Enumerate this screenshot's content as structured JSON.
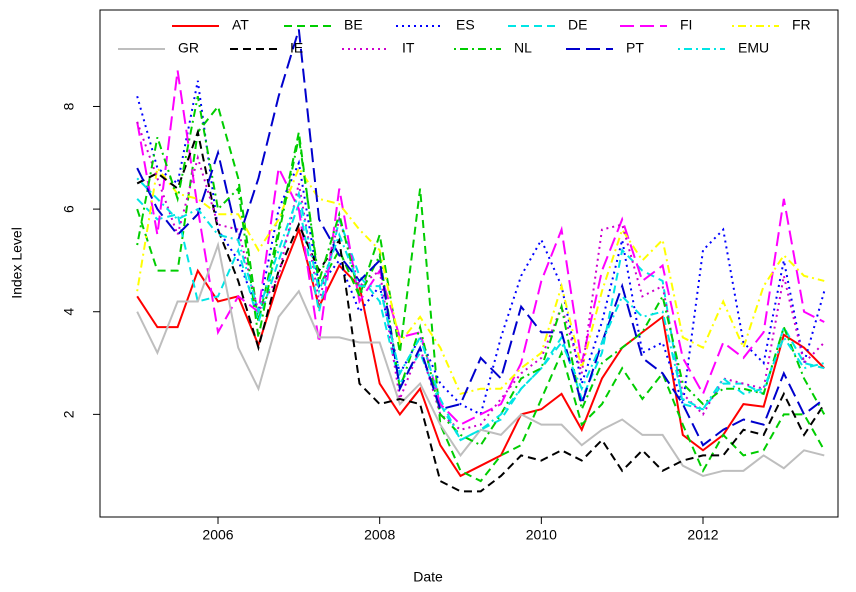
{
  "chart_data": {
    "type": "line",
    "x_label": "Date",
    "y_label": "Index Level",
    "xlim": [
      2004.54,
      2013.67
    ],
    "ylim": [
      0,
      9.88
    ],
    "xticks": [
      2006,
      2008,
      2010,
      2012
    ],
    "yticks": [
      2,
      4,
      6,
      8
    ],
    "legend": "top",
    "x": [
      2005,
      2005.25,
      2005.5,
      2005.75,
      2006,
      2006.25,
      2006.5,
      2006.75,
      2007,
      2007.25,
      2007.5,
      2007.75,
      2008,
      2008.25,
      2008.5,
      2008.75,
      2009,
      2009.25,
      2009.5,
      2009.75,
      2010,
      2010.25,
      2010.5,
      2010.75,
      2011,
      2011.25,
      2011.5,
      2011.75,
      2012,
      2012.25,
      2012.5,
      2012.75,
      2013,
      2013.25,
      2013.5
    ],
    "series": [
      {
        "name": "AT",
        "color": "#ff0000",
        "linetype": "solid",
        "values": [
          4.3,
          3.7,
          3.7,
          4.8,
          4.2,
          4.3,
          3.35,
          4.6,
          5.6,
          4.1,
          4.9,
          4.5,
          2.6,
          2.0,
          2.5,
          1.4,
          0.8,
          1.0,
          1.2,
          2.0,
          2.1,
          2.4,
          1.7,
          2.7,
          3.3,
          3.6,
          3.9,
          1.6,
          1.3,
          1.6,
          2.2,
          2.15,
          3.55,
          3.3,
          2.9
        ]
      },
      {
        "name": "BE",
        "color": "#00cd00",
        "linetype": "dashed",
        "values": [
          6.0,
          4.8,
          4.8,
          7.5,
          8.0,
          6.6,
          3.8,
          5.6,
          7.5,
          4.5,
          5.2,
          4.3,
          5.5,
          3.2,
          6.4,
          1.8,
          0.9,
          0.7,
          1.2,
          1.4,
          2.3,
          3.2,
          1.8,
          2.2,
          2.9,
          2.3,
          2.8,
          1.8,
          0.9,
          1.6,
          1.2,
          1.3,
          2.0,
          2.0,
          1.3
        ]
      },
      {
        "name": "ES",
        "color": "#0000ff",
        "linetype": "dotted",
        "values": [
          8.2,
          6.8,
          6.5,
          8.5,
          5.6,
          5.0,
          4.0,
          6.0,
          6.9,
          4.5,
          5.0,
          4.0,
          4.5,
          2.8,
          3.5,
          2.6,
          2.2,
          2.0,
          3.5,
          4.7,
          5.4,
          4.5,
          2.6,
          3.8,
          5.4,
          3.2,
          3.4,
          2.2,
          5.2,
          5.6,
          3.4,
          3.0,
          5.0,
          3.0,
          4.4
        ]
      },
      {
        "name": "DE",
        "color": "#00e5e5",
        "linetype": "dashed",
        "values": [
          6.2,
          5.8,
          5.9,
          4.2,
          4.3,
          5.2,
          3.8,
          5.0,
          6.1,
          4.0,
          5.8,
          4.7,
          4.2,
          2.6,
          3.2,
          2.2,
          1.5,
          1.7,
          1.9,
          2.5,
          2.9,
          3.5,
          2.3,
          3.2,
          5.2,
          4.8,
          4.6,
          2.2,
          2.1,
          2.6,
          2.6,
          2.4,
          3.7,
          3.0,
          2.9
        ]
      },
      {
        "name": "FI",
        "color": "#ff00ff",
        "linetype": "longdash",
        "values": [
          7.7,
          5.5,
          8.7,
          6.0,
          3.6,
          4.3,
          4.0,
          6.8,
          6.0,
          3.4,
          6.4,
          4.2,
          4.8,
          3.5,
          3.6,
          2.2,
          1.8,
          2.0,
          2.2,
          3.0,
          4.6,
          5.6,
          3.0,
          4.8,
          5.8,
          4.6,
          4.9,
          3.1,
          2.4,
          3.4,
          3.1,
          3.6,
          6.2,
          4.0,
          3.8
        ]
      },
      {
        "name": "FR",
        "color": "#ffff00",
        "linetype": "dotdash",
        "values": [
          4.4,
          6.8,
          6.3,
          6.2,
          5.9,
          5.9,
          5.2,
          5.8,
          6.8,
          6.2,
          6.1,
          5.6,
          5.2,
          3.4,
          3.9,
          3.3,
          2.4,
          2.5,
          2.5,
          2.9,
          3.2,
          4.5,
          2.9,
          4.4,
          5.6,
          5.0,
          5.4,
          3.5,
          3.3,
          4.2,
          3.3,
          4.5,
          5.1,
          4.7,
          4.6
        ]
      },
      {
        "name": "GR",
        "color": "#bebebe",
        "linetype": "solid",
        "values": [
          4.0,
          3.2,
          4.2,
          4.2,
          5.3,
          3.3,
          2.5,
          3.9,
          4.4,
          3.5,
          3.5,
          3.4,
          3.4,
          2.2,
          2.6,
          1.8,
          1.2,
          1.7,
          1.6,
          2.0,
          1.8,
          1.8,
          1.4,
          1.7,
          1.9,
          1.6,
          1.6,
          1.0,
          0.8,
          0.9,
          0.9,
          1.2,
          0.95,
          1.3,
          1.2
        ]
      },
      {
        "name": "IE",
        "color": "#000000",
        "linetype": "dashed",
        "values": [
          6.5,
          6.7,
          6.4,
          7.5,
          5.6,
          4.6,
          3.3,
          4.8,
          5.7,
          4.8,
          5.4,
          2.6,
          2.2,
          2.3,
          2.2,
          0.7,
          0.5,
          0.5,
          0.8,
          1.2,
          1.1,
          1.3,
          1.1,
          1.5,
          0.9,
          1.3,
          0.9,
          1.1,
          1.2,
          1.2,
          1.7,
          1.6,
          2.4,
          1.6,
          2.2
        ]
      },
      {
        "name": "IT",
        "color": "#cd00cd",
        "linetype": "dotted",
        "values": [
          7.7,
          6.6,
          5.5,
          7.0,
          5.7,
          5.6,
          4.0,
          4.7,
          6.5,
          4.2,
          5.8,
          4.5,
          4.8,
          2.3,
          3.3,
          2.0,
          1.7,
          1.8,
          2.3,
          2.8,
          3.1,
          4.1,
          2.8,
          5.6,
          5.7,
          4.3,
          4.5,
          2.4,
          2.0,
          2.7,
          2.6,
          2.5,
          4.7,
          3.0,
          3.4
        ]
      },
      {
        "name": "NL",
        "color": "#00cd00",
        "linetype": "dotdash",
        "values": [
          5.3,
          7.4,
          6.2,
          8.2,
          6.0,
          6.4,
          3.5,
          5.5,
          7.4,
          4.6,
          5.9,
          4.3,
          5.1,
          2.5,
          3.7,
          2.0,
          1.6,
          1.4,
          2.0,
          2.7,
          2.9,
          4.1,
          2.1,
          3.0,
          3.3,
          3.6,
          4.3,
          2.6,
          2.2,
          2.5,
          2.5,
          2.4,
          3.7,
          2.7,
          2.0
        ]
      },
      {
        "name": "PT",
        "color": "#0000cd",
        "linetype": "longdash",
        "values": [
          6.8,
          6.0,
          5.5,
          5.9,
          7.1,
          5.4,
          6.6,
          8.2,
          9.5,
          5.8,
          5.1,
          4.6,
          5.0,
          2.5,
          3.3,
          2.1,
          2.2,
          3.1,
          2.7,
          4.1,
          3.6,
          3.6,
          2.2,
          3.4,
          4.5,
          3.1,
          2.8,
          2.2,
          1.4,
          1.7,
          1.9,
          1.8,
          2.8,
          2.0,
          2.3
        ]
      },
      {
        "name": "EMU",
        "color": "#00e5e5",
        "linetype": "dotdash",
        "values": [
          6.6,
          6.2,
          5.8,
          6.0,
          5.5,
          5.4,
          4.0,
          5.2,
          6.3,
          4.4,
          5.5,
          4.5,
          4.5,
          2.8,
          3.5,
          2.3,
          1.5,
          1.7,
          2.0,
          2.5,
          2.9,
          3.4,
          2.5,
          3.4,
          4.3,
          3.9,
          4.0,
          2.3,
          2.1,
          2.7,
          2.4,
          2.5,
          3.5,
          2.9,
          3.0
        ]
      }
    ]
  }
}
